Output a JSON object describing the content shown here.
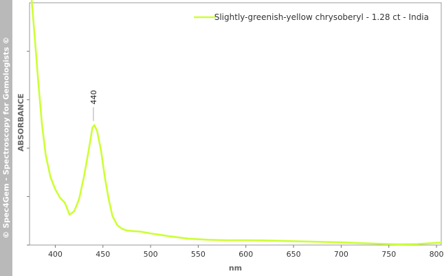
{
  "side_banner": "© Spec4Gem - Spectroscopy for Gemologists ©",
  "chart_data": {
    "type": "line",
    "title": "",
    "xlabel": "nm",
    "ylabel": "ABSORBANCE",
    "xlim": [
      373,
      805
    ],
    "ylim": [
      0,
      10
    ],
    "xticks": [
      400,
      450,
      500,
      550,
      600,
      650,
      700,
      750,
      800
    ],
    "ytick_marks": [
      0,
      2,
      4,
      6,
      8
    ],
    "y_tick_labels_shown": false,
    "grid": false,
    "legend_position": "top-right",
    "series": [
      {
        "name": "Slightly-greenish-yellow chrysoberyl - 1.28 ct - India",
        "color": "#ccff33",
        "points": [
          [
            375,
            10.2
          ],
          [
            378,
            8.8
          ],
          [
            382,
            6.8
          ],
          [
            386,
            5.0
          ],
          [
            390,
            3.7
          ],
          [
            395,
            2.8
          ],
          [
            400,
            2.3
          ],
          [
            405,
            1.95
          ],
          [
            410,
            1.75
          ],
          [
            415,
            1.25
          ],
          [
            420,
            1.4
          ],
          [
            425,
            1.9
          ],
          [
            430,
            2.8
          ],
          [
            435,
            3.9
          ],
          [
            439,
            4.85
          ],
          [
            441,
            4.95
          ],
          [
            444,
            4.7
          ],
          [
            448,
            3.9
          ],
          [
            452,
            2.8
          ],
          [
            456,
            1.9
          ],
          [
            460,
            1.2
          ],
          [
            465,
            0.82
          ],
          [
            470,
            0.67
          ],
          [
            475,
            0.6
          ],
          [
            480,
            0.58
          ],
          [
            490,
            0.55
          ],
          [
            500,
            0.48
          ],
          [
            510,
            0.42
          ],
          [
            520,
            0.36
          ],
          [
            530,
            0.31
          ],
          [
            540,
            0.26
          ],
          [
            550,
            0.24
          ],
          [
            560,
            0.22
          ],
          [
            580,
            0.2
          ],
          [
            600,
            0.2
          ],
          [
            620,
            0.19
          ],
          [
            650,
            0.16
          ],
          [
            680,
            0.13
          ],
          [
            700,
            0.11
          ],
          [
            720,
            0.08
          ],
          [
            740,
            0.05
          ],
          [
            760,
            0.03
          ],
          [
            780,
            0.04
          ],
          [
            800,
            0.09
          ],
          [
            805,
            0.1
          ]
        ]
      }
    ],
    "annotations": [
      {
        "x": 440,
        "y": 4.95,
        "label": "440"
      }
    ]
  }
}
